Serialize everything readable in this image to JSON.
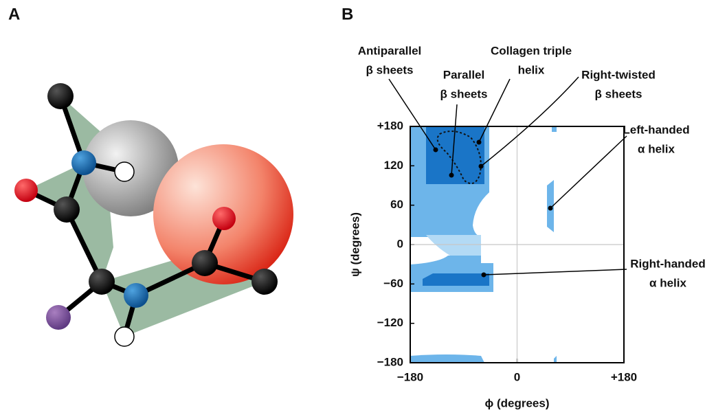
{
  "panel_a": {
    "label": "A"
  },
  "panel_b": {
    "label": "B",
    "x_axis": {
      "label": "ϕ (degrees)",
      "lim": [
        -180,
        180
      ],
      "ticks": [
        {
          "value": -180,
          "label": "−180"
        },
        0,
        {
          "value": 180,
          "label": "+180"
        }
      ]
    },
    "y_axis": {
      "label": "ψ (degrees)",
      "lim": [
        -180,
        180
      ],
      "ticks": [
        {
          "value": 180,
          "label": "+180"
        },
        120,
        60,
        0,
        {
          "value": -60,
          "label": "−60"
        },
        {
          "value": -120,
          "label": "−120"
        },
        {
          "value": -180,
          "label": "−180"
        }
      ]
    },
    "annotations": [
      {
        "lines": [
          "Antiparallel",
          "β sheets"
        ]
      },
      {
        "lines": [
          "Parallel",
          "β sheets"
        ]
      },
      {
        "lines": [
          "Collagen triple",
          "helix"
        ]
      },
      {
        "lines": [
          "Right-twisted",
          "β sheets"
        ]
      },
      {
        "lines": [
          "Left-handed",
          "α helix"
        ]
      },
      {
        "lines": [
          "Right-handed",
          "α helix"
        ]
      }
    ]
  }
}
